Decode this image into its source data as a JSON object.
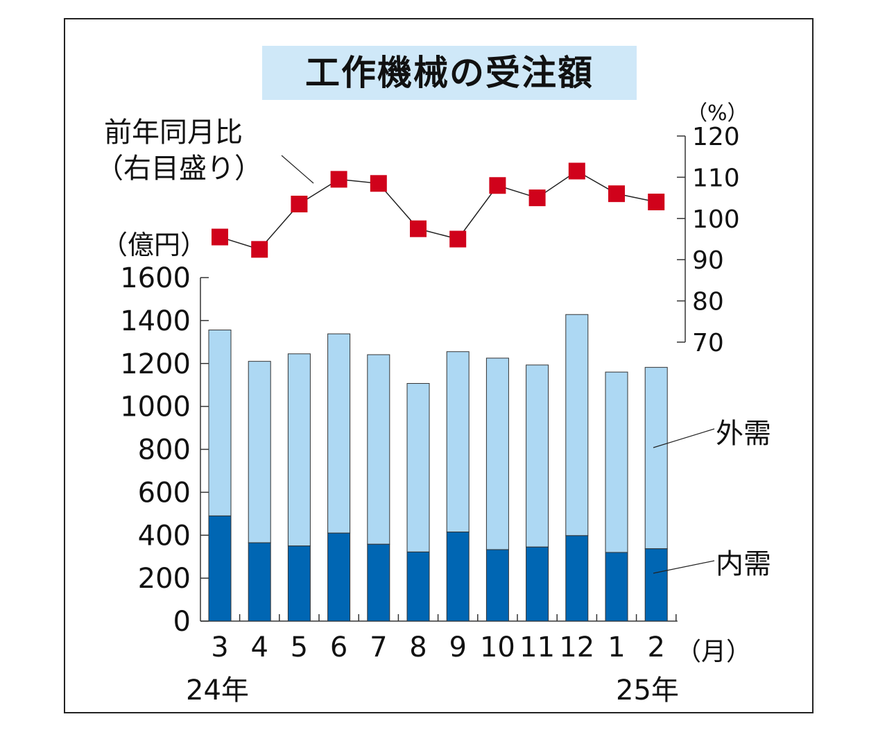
{
  "title": "工作機械の受注額",
  "line_label_line1": "前年同月比",
  "line_label_line2": "（右目盛り）",
  "left_unit": "（億円）",
  "right_unit": "（%）",
  "x_unit": "（月）",
  "year_start": "24年",
  "year_end": "25年",
  "series_label_foreign": "外需",
  "series_label_domestic": "内需",
  "colors": {
    "domestic": "#0066b3",
    "foreign": "#add8f3",
    "marker": "#d0021b",
    "title_bg": "#cfe8f8"
  },
  "chart_data": {
    "type": "bar",
    "title": "工作機械の受注額",
    "categories": [
      "3",
      "4",
      "5",
      "6",
      "7",
      "8",
      "9",
      "10",
      "11",
      "12",
      "1",
      "2"
    ],
    "stacked": true,
    "series": [
      {
        "name": "内需",
        "values": [
          490,
          365,
          350,
          410,
          358,
          322,
          415,
          333,
          345,
          398,
          320,
          337
        ]
      },
      {
        "name": "外需",
        "values": [
          866,
          845,
          895,
          928,
          883,
          785,
          840,
          892,
          848,
          1030,
          840,
          845
        ]
      }
    ],
    "totals": [
      1356,
      1210,
      1245,
      1338,
      1241,
      1107,
      1255,
      1225,
      1193,
      1428,
      1160,
      1182
    ],
    "ylim": [
      0,
      1600
    ],
    "yticks": [
      0,
      200,
      400,
      600,
      800,
      1000,
      1200,
      1400,
      1600
    ],
    "ylabel": "（億円）",
    "line": {
      "name": "前年同月比",
      "axis": "right",
      "values": [
        95.5,
        92.5,
        103.5,
        109.5,
        108.5,
        97.5,
        95,
        108,
        105,
        111.5,
        106,
        104
      ],
      "ylim": [
        70,
        120
      ],
      "yticks": [
        70,
        80,
        90,
        100,
        110,
        120
      ],
      "ylabel": "（%）"
    },
    "xlabel": "（月）"
  }
}
